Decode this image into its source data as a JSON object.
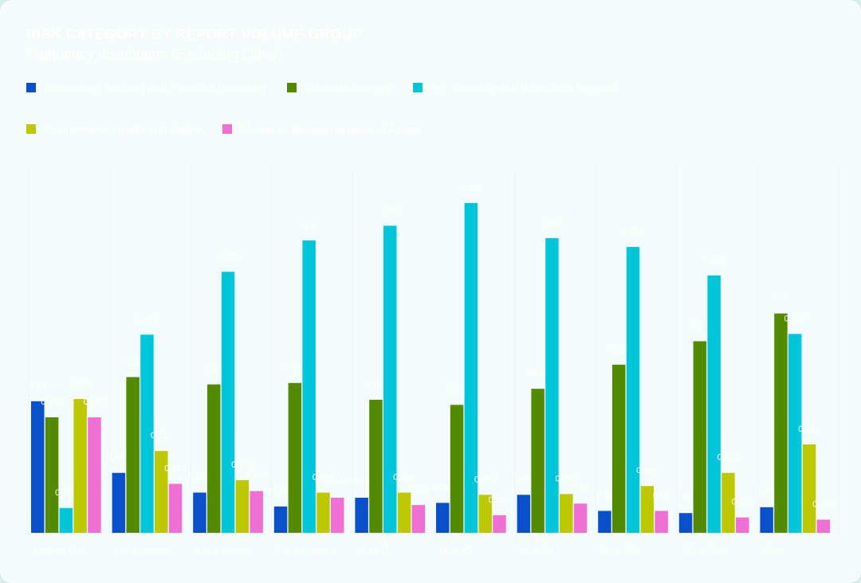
{
  "chart_data": {
    "type": "bar",
    "title": "RISK CATEGORY BY REPORT VOLUME GROUP",
    "subtitle": "Frequency distribution (Excluding Other)",
    "legend_position": "top-left",
    "categories": [
      "1 report (21)",
      "2 to 3 reports",
      "4 to 6 reports",
      "7 to 10 reports",
      "11 to 15",
      "16 to 25",
      "26 to 50",
      "51 to 100",
      "101 to 200",
      "200+"
    ],
    "ylim": [
      0,
      0.5
    ],
    "grid": true,
    "series": [
      {
        "name": "Accounting, Auditing and Financial Reporting",
        "color": "#0a4fcc",
        "values": [
          0.18,
          0.082,
          0.055,
          0.036,
          0.048,
          0.041,
          0.052,
          0.03,
          0.027,
          0.035
        ]
      },
      {
        "name": "Business Integrity",
        "color": "#538a00",
        "values": [
          0.158,
          0.213,
          0.203,
          0.205,
          0.182,
          0.175,
          0.197,
          0.23,
          0.262,
          0.3
        ]
      },
      {
        "name": "HR, Diversity and Workplace Respect",
        "color": "#00c6dc",
        "values": [
          0.034,
          0.271,
          0.357,
          0.4,
          0.42,
          0.451,
          0.403,
          0.391,
          0.352,
          0.272
        ]
      },
      {
        "name": "Environment, Health and Safety",
        "color": "#bdc800",
        "values": [
          0.183,
          0.112,
          0.072,
          0.055,
          0.055,
          0.052,
          0.053,
          0.064,
          0.082,
          0.121
        ]
      },
      {
        "name": "Misuse or Misappropriation of Assets",
        "color": "#ef6fd5",
        "values": [
          0.158,
          0.067,
          0.057,
          0.048,
          0.038,
          0.024,
          0.04,
          0.03,
          0.021,
          0.018
        ]
      }
    ]
  }
}
